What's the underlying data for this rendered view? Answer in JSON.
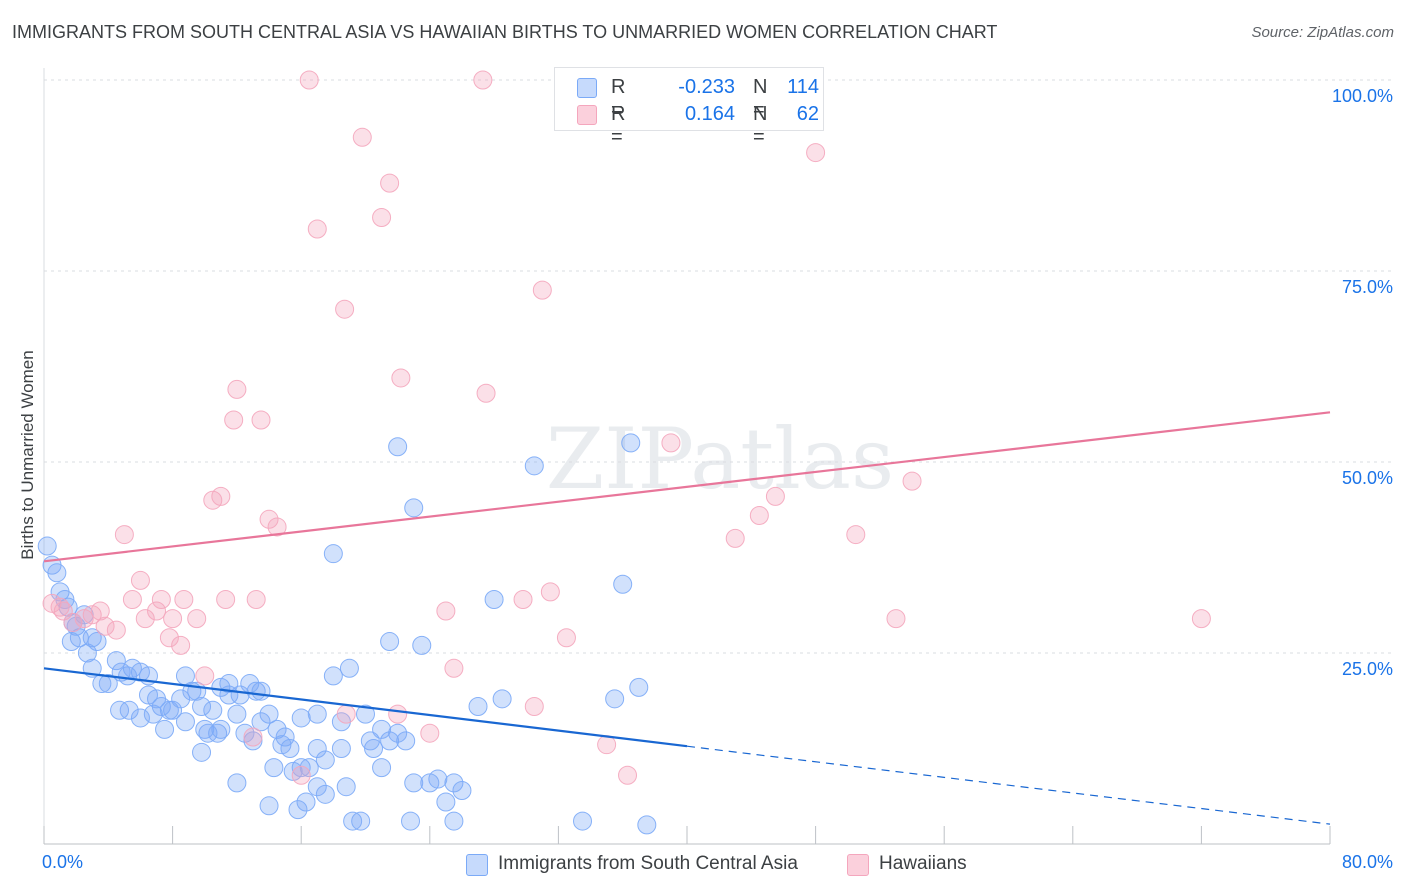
{
  "chart_data": {
    "type": "scatter",
    "title": "IMMIGRANTS FROM SOUTH CENTRAL ASIA VS HAWAIIAN BIRTHS TO UNMARRIED WOMEN CORRELATION CHART",
    "source": "Source: ZipAtlas.com",
    "xlabel": "",
    "ylabel": "Births to Unmarried Women",
    "xlim": [
      0,
      80
    ],
    "ylim": [
      0,
      100
    ],
    "x_tick_labels": [
      "0.0%",
      "80.0%"
    ],
    "y_ticks": [
      25,
      50,
      75,
      100
    ],
    "y_tick_labels": [
      "25.0%",
      "50.0%",
      "75.0%",
      "100.0%"
    ],
    "grid": true,
    "watermark": "ZIPatlas",
    "legend": [
      {
        "label_r": "R =",
        "r": "-0.233",
        "label_n": "N =",
        "n": "114"
      },
      {
        "label_r": "R =",
        "r": "0.164",
        "label_n": "N =",
        "n": "62"
      }
    ],
    "series": [
      {
        "name": "Immigrants from South Central Asia",
        "color": "#7baaf7",
        "line_color": "#1967d2",
        "trend": {
          "x0": 0,
          "y0": 23.0,
          "x1": 40,
          "y1": 12.8,
          "dash_to_x": 80,
          "dash_to_y": 2.6
        },
        "points": [
          [
            0.2,
            39.0
          ],
          [
            0.5,
            36.5
          ],
          [
            0.8,
            35.5
          ],
          [
            1.0,
            33.0
          ],
          [
            1.3,
            32.0
          ],
          [
            1.5,
            31.0
          ],
          [
            1.8,
            29.0
          ],
          [
            2.0,
            28.5
          ],
          [
            2.2,
            27.0
          ],
          [
            1.7,
            26.5
          ],
          [
            2.5,
            30.0
          ],
          [
            3.0,
            27.0
          ],
          [
            3.3,
            26.5
          ],
          [
            2.7,
            25.0
          ],
          [
            3.0,
            23.0
          ],
          [
            3.6,
            21.0
          ],
          [
            4.5,
            24.0
          ],
          [
            4.0,
            21.0
          ],
          [
            4.8,
            22.5
          ],
          [
            5.5,
            23.0
          ],
          [
            6.0,
            22.5
          ],
          [
            5.2,
            22.0
          ],
          [
            6.5,
            22.0
          ],
          [
            4.7,
            17.5
          ],
          [
            5.3,
            17.5
          ],
          [
            6.5,
            19.5
          ],
          [
            7.0,
            19.0
          ],
          [
            7.3,
            18.0
          ],
          [
            7.8,
            17.5
          ],
          [
            6.8,
            17.0
          ],
          [
            7.5,
            15.0
          ],
          [
            8.8,
            22.0
          ],
          [
            9.2,
            20.0
          ],
          [
            9.5,
            20.0
          ],
          [
            8.5,
            19.0
          ],
          [
            9.8,
            18.0
          ],
          [
            10.5,
            17.5
          ],
          [
            11.0,
            15.0
          ],
          [
            10.2,
            14.5
          ],
          [
            9.8,
            12.0
          ],
          [
            10.8,
            14.5
          ],
          [
            11.5,
            21.0
          ],
          [
            12.0,
            17.0
          ],
          [
            12.8,
            21.0
          ],
          [
            13.2,
            20.0
          ],
          [
            13.5,
            16.0
          ],
          [
            12.5,
            14.5
          ],
          [
            14.0,
            17.0
          ],
          [
            14.5,
            15.0
          ],
          [
            15.0,
            14.0
          ],
          [
            13.0,
            13.5
          ],
          [
            15.3,
            12.5
          ],
          [
            16.0,
            10.0
          ],
          [
            15.5,
            9.5
          ],
          [
            14.3,
            10.0
          ],
          [
            16.5,
            10.0
          ],
          [
            17.0,
            17.0
          ],
          [
            18.0,
            22.0
          ],
          [
            18.5,
            16.0
          ],
          [
            19.0,
            23.0
          ],
          [
            20.0,
            17.0
          ],
          [
            21.0,
            15.0
          ],
          [
            21.5,
            13.5
          ],
          [
            22.0,
            14.5
          ],
          [
            20.5,
            12.5
          ],
          [
            21.0,
            10.0
          ],
          [
            22.5,
            13.5
          ],
          [
            23.0,
            8.0
          ],
          [
            24.0,
            8.0
          ],
          [
            24.5,
            8.5
          ],
          [
            25.0,
            5.5
          ],
          [
            25.5,
            8.0
          ],
          [
            26.0,
            7.0
          ],
          [
            25.5,
            3.0
          ],
          [
            27.0,
            18.0
          ],
          [
            28.0,
            32.0
          ],
          [
            28.5,
            19.0
          ],
          [
            22.0,
            52.0
          ],
          [
            23.0,
            44.0
          ],
          [
            30.5,
            49.5
          ],
          [
            36.5,
            52.5
          ],
          [
            18.0,
            38.0
          ],
          [
            21.5,
            26.5
          ],
          [
            23.5,
            26.0
          ],
          [
            36.0,
            34.0
          ],
          [
            37.0,
            20.5
          ],
          [
            35.5,
            19.0
          ],
          [
            40.0,
            null
          ],
          [
            37.5,
            2.5
          ],
          [
            33.5,
            3.0
          ],
          [
            19.7,
            3.0
          ],
          [
            17.0,
            7.5
          ],
          [
            18.8,
            7.5
          ],
          [
            17.5,
            6.5
          ],
          [
            16.3,
            5.5
          ],
          [
            15.8,
            4.5
          ],
          [
            14.0,
            5.0
          ],
          [
            12.0,
            8.0
          ],
          [
            18.5,
            12.5
          ],
          [
            11.0,
            20.5
          ],
          [
            16.0,
            16.5
          ],
          [
            17.0,
            12.5
          ],
          [
            14.8,
            13.0
          ],
          [
            11.5,
            19.5
          ],
          [
            8.0,
            17.5
          ],
          [
            6.0,
            16.5
          ],
          [
            13.5,
            20.0
          ],
          [
            20.3,
            13.5
          ],
          [
            12.2,
            19.5
          ],
          [
            8.8,
            16.0
          ],
          [
            10.0,
            15.0
          ],
          [
            19.2,
            3.0
          ],
          [
            17.5,
            11.0
          ],
          [
            22.8,
            3.0
          ]
        ]
      },
      {
        "name": "Hawaiians",
        "color": "#f4a6bd",
        "line_color": "#e8769a",
        "trend": {
          "x0": 0,
          "y0": 37.0,
          "x1": 80,
          "y1": 56.5
        },
        "points": [
          [
            0.5,
            31.5
          ],
          [
            1.0,
            31.0
          ],
          [
            1.8,
            29.0
          ],
          [
            2.5,
            29.5
          ],
          [
            3.0,
            30.0
          ],
          [
            3.5,
            30.5
          ],
          [
            4.5,
            28.0
          ],
          [
            5.0,
            40.5
          ],
          [
            6.0,
            34.5
          ],
          [
            6.3,
            29.5
          ],
          [
            7.0,
            30.5
          ],
          [
            7.3,
            32.0
          ],
          [
            8.0,
            29.5
          ],
          [
            8.5,
            26.0
          ],
          [
            8.7,
            32.0
          ],
          [
            9.5,
            29.5
          ],
          [
            10.0,
            22.0
          ],
          [
            10.5,
            45.0
          ],
          [
            11.0,
            45.5
          ],
          [
            11.3,
            32.0
          ],
          [
            12.0,
            59.5
          ],
          [
            11.8,
            55.5
          ],
          [
            13.5,
            55.5
          ],
          [
            13.2,
            32.0
          ],
          [
            14.0,
            42.5
          ],
          [
            14.5,
            41.5
          ],
          [
            16.0,
            9.0
          ],
          [
            16.5,
            100.0
          ],
          [
            17.0,
            80.5
          ],
          [
            18.7,
            70.0
          ],
          [
            18.8,
            17.0
          ],
          [
            19.8,
            92.5
          ],
          [
            21.5,
            86.5
          ],
          [
            21.0,
            82.0
          ],
          [
            22.2,
            61.0
          ],
          [
            22.0,
            17.0
          ],
          [
            24.0,
            14.5
          ],
          [
            25.0,
            30.5
          ],
          [
            25.5,
            23.0
          ],
          [
            27.3,
            100.0
          ],
          [
            27.5,
            59.0
          ],
          [
            29.8,
            32.0
          ],
          [
            30.5,
            18.0
          ],
          [
            31.0,
            72.5
          ],
          [
            31.5,
            33.0
          ],
          [
            32.5,
            27.0
          ],
          [
            35.0,
            13.0
          ],
          [
            36.3,
            9.0
          ],
          [
            39.0,
            52.5
          ],
          [
            43.0,
            40.0
          ],
          [
            44.5,
            43.0
          ],
          [
            45.5,
            45.5
          ],
          [
            48.0,
            90.5
          ],
          [
            50.5,
            40.5
          ],
          [
            53.0,
            29.5
          ],
          [
            54.0,
            47.5
          ],
          [
            72.0,
            29.5
          ],
          [
            13.0,
            14.0
          ],
          [
            5.5,
            32.0
          ],
          [
            1.2,
            30.5
          ],
          [
            7.8,
            27.0
          ],
          [
            3.8,
            28.5
          ]
        ]
      }
    ]
  }
}
